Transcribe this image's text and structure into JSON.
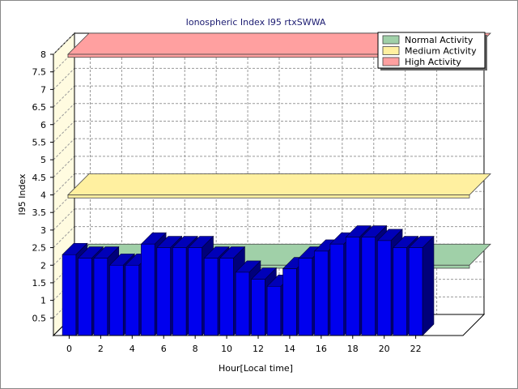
{
  "chart_data": {
    "type": "bar",
    "title": "Ionospheric Index I95 rtxSWWA",
    "xlabel": "Hour[Local time]",
    "ylabel": "I95 Index",
    "ylim": [
      0,
      8
    ],
    "y_ticks": [
      "0.5",
      "1",
      "1.5",
      "2",
      "2.5",
      "3",
      "3.5",
      "4",
      "4.5",
      "5",
      "5.5",
      "6",
      "6.5",
      "7",
      "7.5",
      "8"
    ],
    "x_ticks": [
      "0",
      "2",
      "4",
      "6",
      "8",
      "10",
      "12",
      "14",
      "16",
      "18",
      "20",
      "22"
    ],
    "grid": true,
    "legend_position": "top-right",
    "bar_color": "#0000ee",
    "series": [
      {
        "x": [
          0,
          1,
          2,
          3,
          4,
          5,
          6,
          7,
          8,
          9,
          10,
          11,
          12,
          13,
          14,
          15,
          16,
          17,
          18,
          19,
          20,
          21,
          22
        ],
        "values": [
          2.3,
          2.2,
          2.2,
          2.0,
          2.0,
          2.6,
          2.5,
          2.5,
          2.5,
          2.2,
          2.2,
          1.8,
          1.6,
          1.4,
          1.9,
          2.2,
          2.4,
          2.6,
          2.8,
          2.8,
          2.7,
          2.5,
          2.5
        ]
      }
    ],
    "bands": [
      {
        "name": "Normal Activity",
        "value": 2.0,
        "color": "#a0d0a8"
      },
      {
        "name": "Medium Activity",
        "value": 4.0,
        "color": "#fff0a0"
      },
      {
        "name": "High Activity",
        "value": 8.0,
        "color": "#ffa0a0"
      }
    ]
  }
}
